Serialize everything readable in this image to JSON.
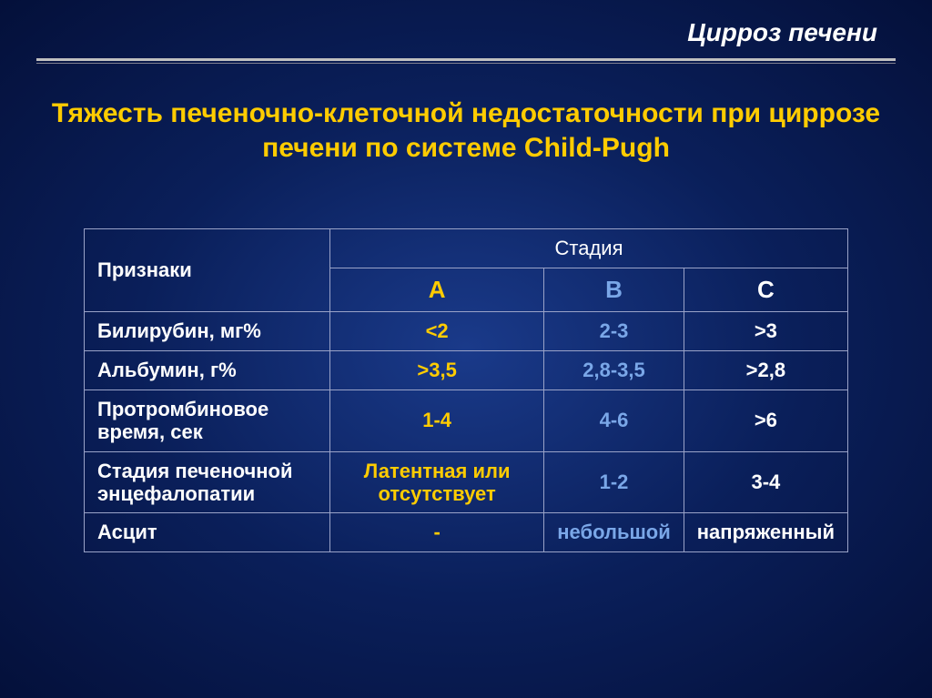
{
  "header": {
    "title": "Цирроз печени"
  },
  "subtitle": "Тяжесть печеночно-клеточной недостаточности при циррозе печени по системе Child-Pugh",
  "table": {
    "corner_label": "Признаки",
    "stage_label": "Стадия",
    "stages": {
      "a": "A",
      "b": "B",
      "c": "C"
    },
    "rows": [
      {
        "label": "Билирубин, мг%",
        "a": "<2",
        "b": "2-3",
        "c": ">3"
      },
      {
        "label": "Альбумин, г%",
        "a": ">3,5",
        "b": "2,8-3,5",
        "c": ">2,8"
      },
      {
        "label": "Протромбиновое время, сек",
        "a": "1-4",
        "b": "4-6",
        "c": ">6"
      },
      {
        "label": "Стадия печеночной энцефалопатии",
        "a": "Латентная или отсутствует",
        "b": "1-2",
        "c": "3-4"
      },
      {
        "label": "Асцит",
        "a": "-",
        "b": "небольшой",
        "c": "напряженный"
      }
    ]
  },
  "colors": {
    "accent_yellow": "#ffcc00",
    "accent_blue": "#7aa7e8",
    "text_white": "#ffffff",
    "border": "#9aa3c8"
  }
}
